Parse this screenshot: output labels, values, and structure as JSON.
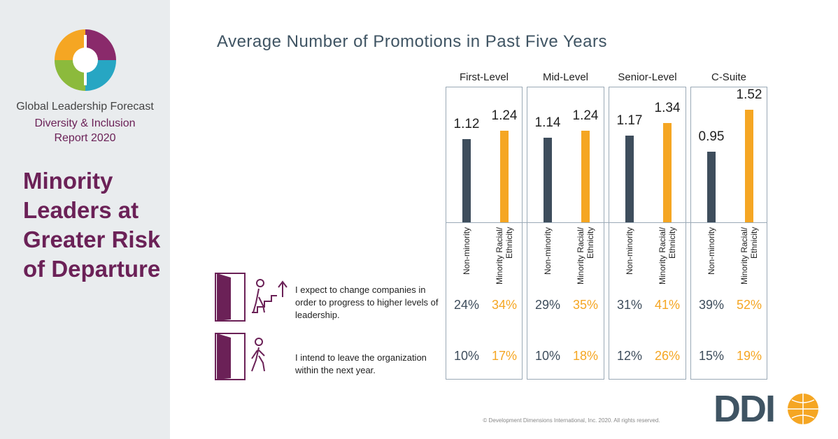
{
  "report": {
    "lines": [
      "Global Leadership Forecast",
      "Diversity & Inclusion",
      "Report 2020"
    ],
    "headline": "Minority Leaders at Greater Risk of Departure"
  },
  "chart_data": {
    "type": "bar",
    "title": "Average Number of Promotions in Past Five Years",
    "categories": [
      "First-Level",
      "Mid-Level",
      "Senior-Level",
      "C-Suite"
    ],
    "series": [
      {
        "name": "Non-minority",
        "color": "#3e4d5c",
        "values": [
          1.12,
          1.14,
          1.17,
          0.95
        ]
      },
      {
        "name": "Minority Racial/ Ethnicity",
        "color": "#f5a623",
        "values": [
          1.24,
          1.24,
          1.34,
          1.52
        ]
      }
    ],
    "statements": [
      {
        "text": "I expect to change companies in order to progress to higher levels of leadership.",
        "values": [
          [
            24,
            34
          ],
          [
            29,
            35
          ],
          [
            31,
            41
          ],
          [
            39,
            52
          ]
        ],
        "value_labels": [
          [
            "24%",
            "34%"
          ],
          [
            "29%",
            "35%"
          ],
          [
            "31%",
            "41%"
          ],
          [
            "39%",
            "52%"
          ]
        ]
      },
      {
        "text": "I intend to leave the organization within the next year.",
        "values": [
          [
            10,
            17
          ],
          [
            10,
            18
          ],
          [
            12,
            26
          ],
          [
            15,
            19
          ]
        ],
        "value_labels": [
          [
            "10%",
            "17%"
          ],
          [
            "10%",
            "18%"
          ],
          [
            "12%",
            "26%"
          ],
          [
            "15%",
            "19%"
          ]
        ]
      }
    ]
  },
  "footer": {
    "copyright": "© Development Dimensions International, Inc. 2020. All rights reserved.",
    "brand": "DDI"
  }
}
